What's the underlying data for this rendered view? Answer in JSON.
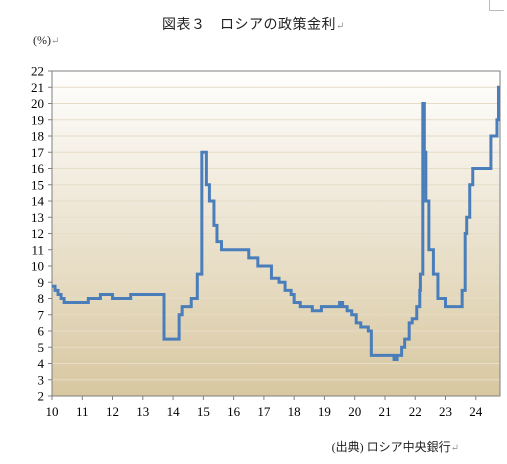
{
  "document": {
    "title": "図表３　ロシアの政策金利",
    "return_mark": "↵",
    "unit": "(%)",
    "source": "(出典) ロシア中央銀行"
  },
  "colors": {
    "line": "#4a7ebb",
    "plot_bg_top": "#ffffff",
    "plot_bg_bottom": "#d8c7a0",
    "grid": "#e6ddc7",
    "frame": "#7f7f7f"
  },
  "chart_data": {
    "type": "line",
    "title": "ロシアの政策金利",
    "xlabel": "",
    "ylabel": "(%)",
    "xlim": [
      10,
      24.8
    ],
    "ylim": [
      2,
      22
    ],
    "grid": "horizontal",
    "x_ticks": [
      10,
      11,
      12,
      13,
      14,
      15,
      16,
      17,
      18,
      19,
      20,
      21,
      22,
      23,
      24
    ],
    "x_tick_labels": [
      "10",
      "11",
      "12",
      "13",
      "14",
      "15",
      "16",
      "17",
      "18",
      "19",
      "20",
      "21",
      "22",
      "23",
      "24"
    ],
    "y_ticks": [
      2,
      3,
      4,
      5,
      6,
      7,
      8,
      9,
      10,
      11,
      12,
      13,
      14,
      15,
      16,
      17,
      18,
      19,
      20,
      21,
      22
    ],
    "series": [
      {
        "name": "",
        "step": true,
        "x": [
          10.0,
          10.1,
          10.2,
          10.3,
          10.4,
          11.0,
          11.2,
          11.6,
          12.0,
          12.6,
          13.7,
          14.2,
          14.3,
          14.4,
          14.6,
          14.8,
          14.95,
          15.1,
          15.2,
          15.35,
          15.45,
          15.6,
          16.5,
          16.8,
          17.25,
          17.5,
          17.7,
          17.9,
          18.0,
          18.2,
          18.6,
          18.9,
          19.5,
          19.6,
          19.75,
          19.9,
          20.05,
          20.2,
          20.45,
          20.55,
          21.3,
          21.4,
          21.55,
          21.65,
          21.8,
          21.9,
          22.05,
          22.15,
          22.17,
          22.25,
          22.3,
          22.35,
          22.45,
          22.6,
          22.75,
          23.0,
          23.55,
          23.65,
          23.7,
          23.8,
          23.9,
          24.0,
          24.5,
          24.7,
          24.75,
          24.8
        ],
        "values": [
          8.75,
          8.5,
          8.25,
          8.0,
          7.75,
          7.75,
          8.0,
          8.25,
          8.0,
          8.25,
          5.5,
          7.0,
          7.5,
          7.5,
          8.0,
          9.5,
          17.0,
          15.0,
          14.0,
          12.5,
          11.5,
          11.0,
          10.5,
          10.0,
          9.25,
          9.0,
          8.5,
          8.25,
          7.75,
          7.5,
          7.25,
          7.5,
          7.75,
          7.5,
          7.25,
          7.0,
          6.5,
          6.25,
          6.0,
          4.5,
          4.25,
          4.5,
          5.0,
          5.5,
          6.5,
          6.75,
          7.5,
          8.5,
          9.5,
          20.0,
          17.0,
          14.0,
          11.0,
          9.5,
          8.0,
          7.5,
          8.5,
          12.0,
          13.0,
          15.0,
          16.0,
          16.0,
          18.0,
          19.0,
          21.0,
          21.0
        ]
      }
    ]
  }
}
